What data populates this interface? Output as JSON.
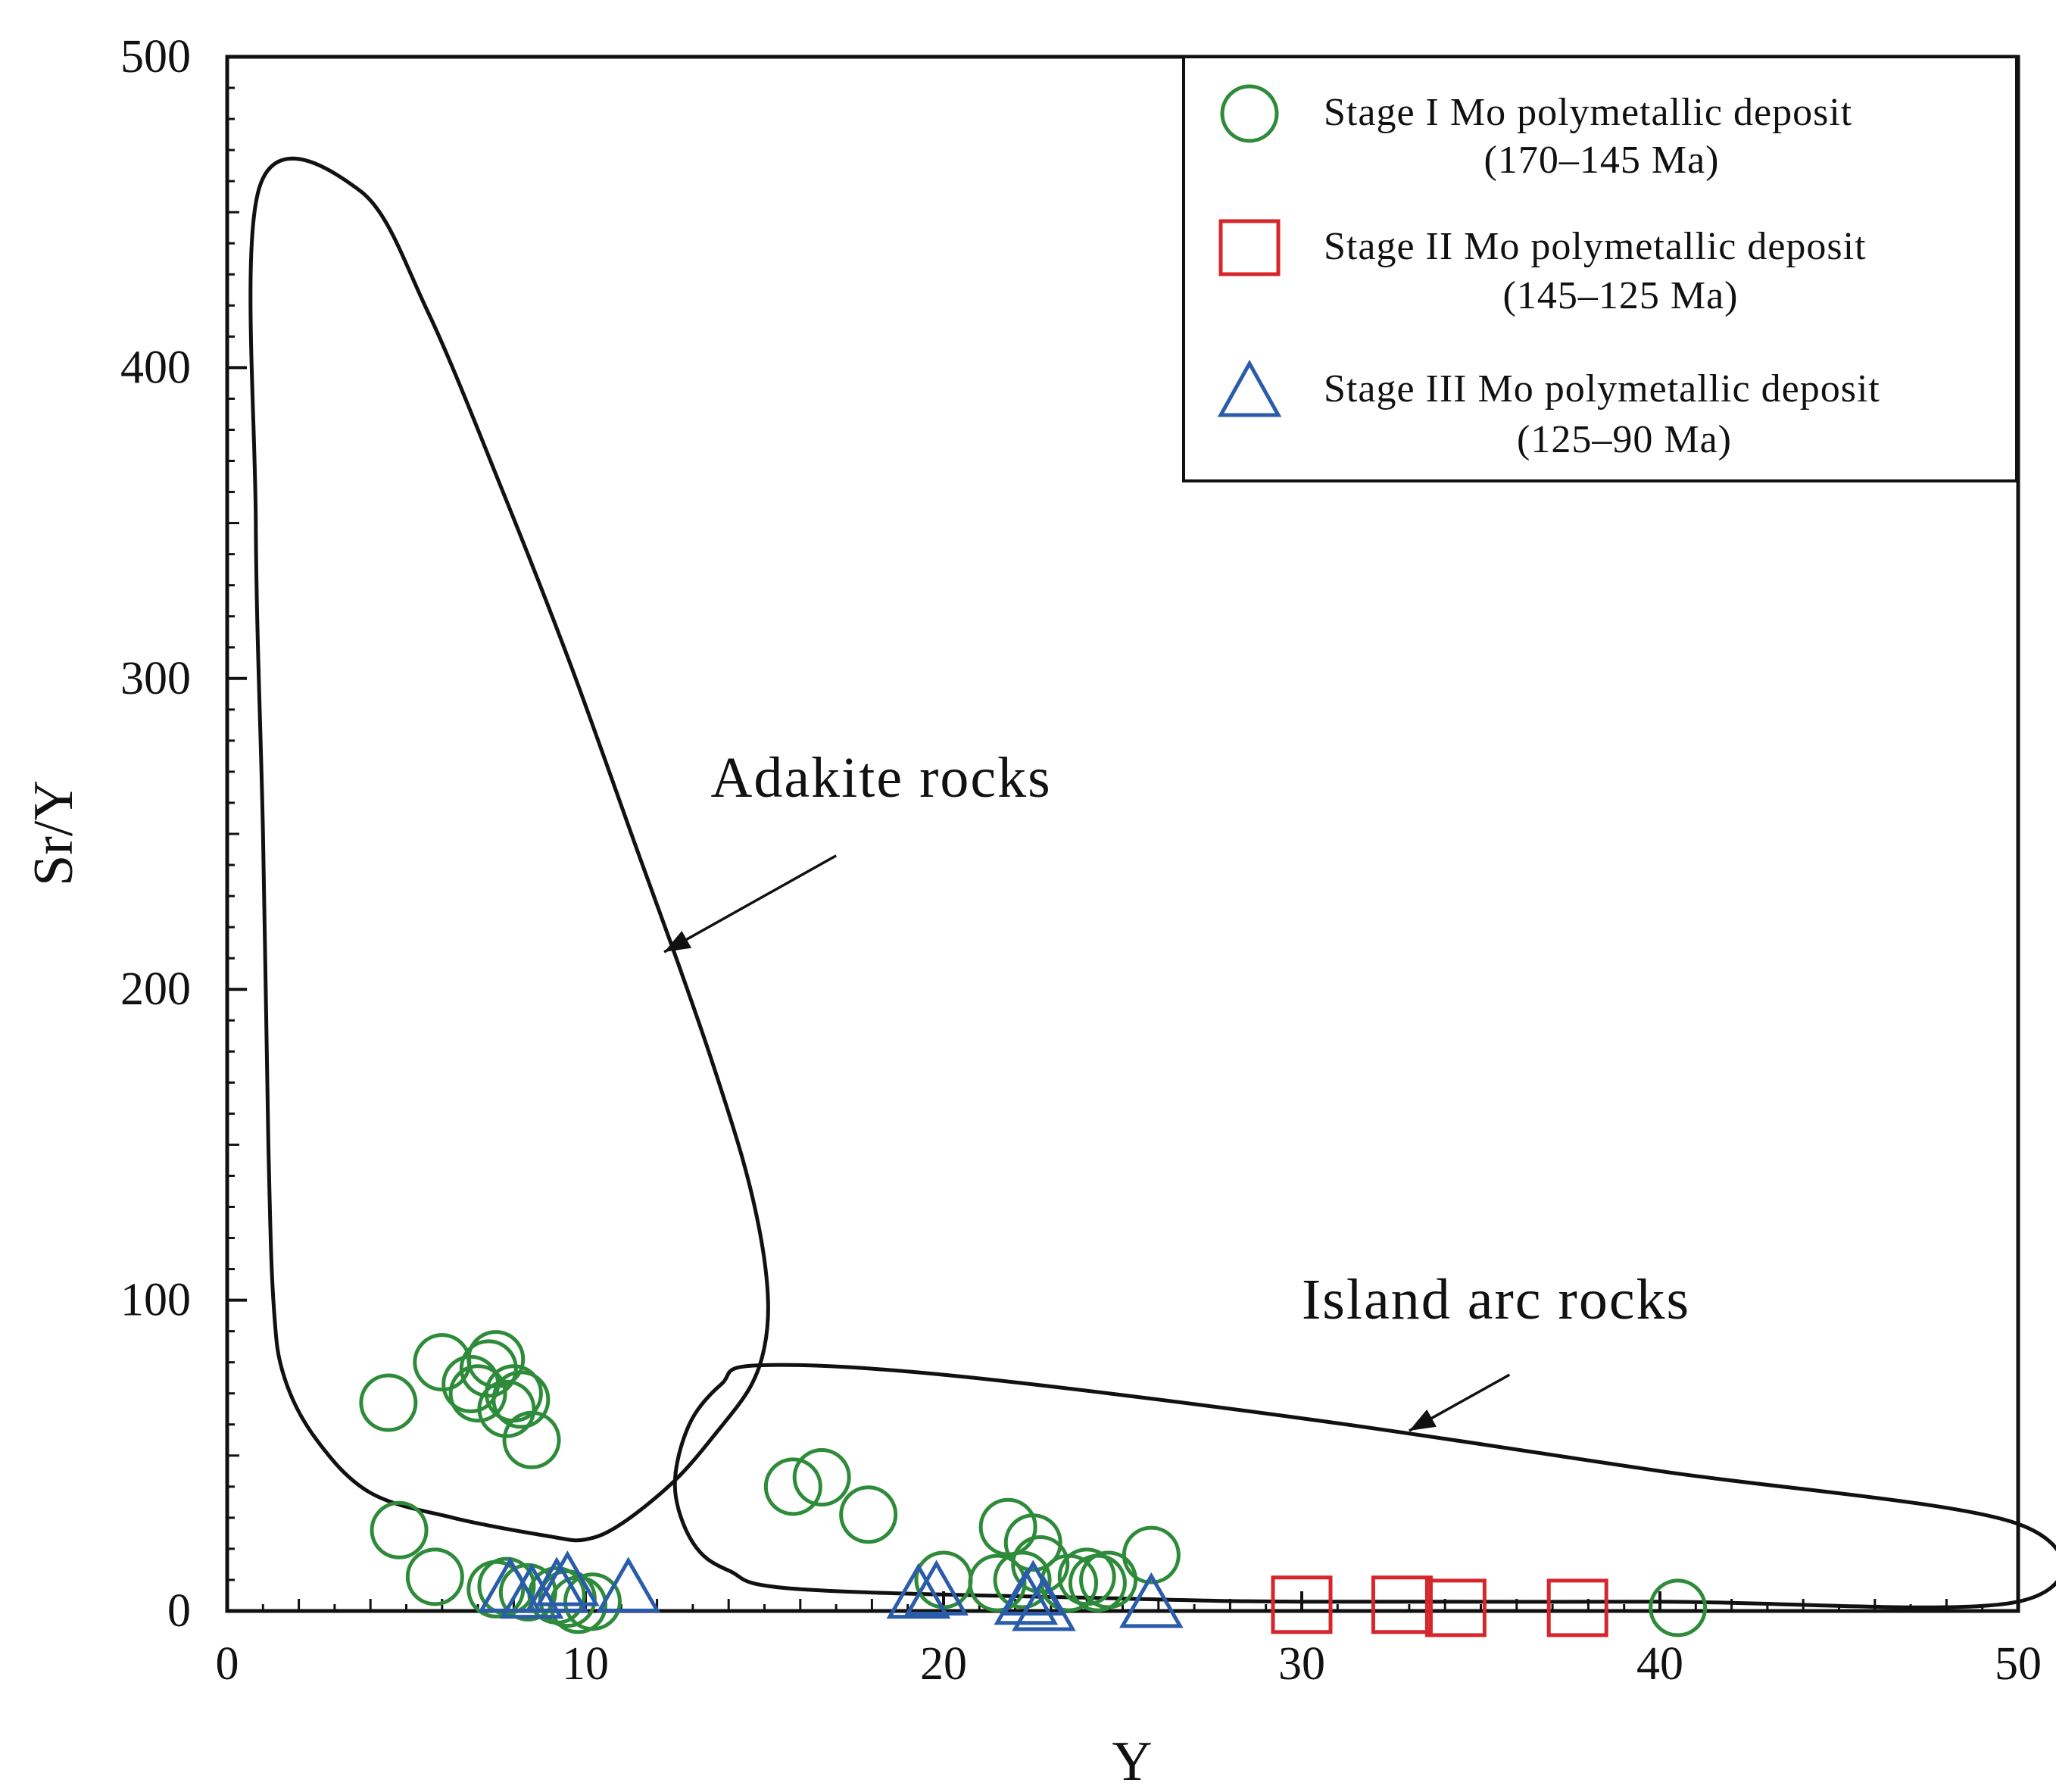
{
  "chart_data": {
    "type": "scatter",
    "title": "",
    "xlabel": "Y",
    "ylabel": "Sr/Y",
    "xlim": [
      0,
      50
    ],
    "ylim": [
      0,
      500
    ],
    "x_ticks": [
      "0",
      "10",
      "20",
      "30",
      "40",
      "50"
    ],
    "y_ticks": [
      "0",
      "100",
      "200",
      "300",
      "400",
      "500"
    ],
    "grid": false,
    "legend_position": "top-right",
    "series": [
      {
        "name": "Stage I Mo polymetallic deposit",
        "sub": "(170–145 Ma)",
        "marker": "circle",
        "color": "#2e8b3a",
        "points": [
          [
            4.5,
            67
          ],
          [
            6.0,
            80
          ],
          [
            6.8,
            73
          ],
          [
            7.0,
            70
          ],
          [
            7.3,
            78
          ],
          [
            7.5,
            81
          ],
          [
            7.8,
            65
          ],
          [
            8.0,
            70
          ],
          [
            8.2,
            68
          ],
          [
            8.5,
            55
          ],
          [
            4.8,
            26
          ],
          [
            5.8,
            11
          ],
          [
            7.5,
            7
          ],
          [
            7.8,
            8
          ],
          [
            8.4,
            6
          ],
          [
            9.2,
            5
          ],
          [
            9.5,
            4
          ],
          [
            9.8,
            2
          ],
          [
            10.2,
            3
          ],
          [
            15.8,
            40
          ],
          [
            16.6,
            43
          ],
          [
            17.9,
            31
          ],
          [
            20.0,
            10
          ],
          [
            21.5,
            9
          ],
          [
            21.8,
            27
          ],
          [
            22.2,
            10
          ],
          [
            22.5,
            22
          ],
          [
            22.7,
            15
          ],
          [
            23.5,
            9
          ],
          [
            24.0,
            11
          ],
          [
            24.3,
            9
          ],
          [
            24.6,
            10
          ],
          [
            25.8,
            18
          ],
          [
            40.5,
            1
          ]
        ]
      },
      {
        "name": "Stage II Mo polymetallic deposit",
        "sub": "(145–125 Ma)",
        "marker": "square",
        "color": "#d7262b",
        "points": [
          [
            30.0,
            2
          ],
          [
            32.8,
            2
          ],
          [
            34.3,
            1
          ],
          [
            37.7,
            1
          ]
        ]
      },
      {
        "name": "Stage III Mo polymetallic deposit",
        "sub": "(125–90 Ma)",
        "marker": "triangle",
        "color": "#2a5caa",
        "points": [
          [
            7.9,
            6
          ],
          [
            8.5,
            4
          ],
          [
            9.2,
            6
          ],
          [
            9.5,
            8
          ],
          [
            11.2,
            6
          ],
          [
            19.3,
            4
          ],
          [
            19.8,
            5
          ],
          [
            22.3,
            2
          ],
          [
            22.5,
            5
          ],
          [
            22.8,
            0
          ],
          [
            25.8,
            1
          ]
        ]
      }
    ],
    "regions": [
      {
        "label": "Adakite rocks",
        "label_anchor": [
          13.5,
          262
        ],
        "arrow_from": [
          17.0,
          243
        ],
        "arrow_to": [
          12.2,
          212
        ],
        "outline": [
          [
            3.7,
            457
          ],
          [
            5.6,
            418
          ],
          [
            7.7,
            360
          ],
          [
            9.6,
            304
          ],
          [
            11.5,
            243
          ],
          [
            12.6,
            208
          ],
          [
            13.5,
            178
          ],
          [
            14.4,
            145
          ],
          [
            14.9,
            120
          ],
          [
            15.1,
            100
          ],
          [
            15.0,
            85
          ],
          [
            14.6,
            72
          ],
          [
            13.7,
            58
          ],
          [
            12.5,
            42
          ],
          [
            11.0,
            28
          ],
          [
            10.0,
            23
          ],
          [
            9.0,
            24
          ],
          [
            6.3,
            30
          ],
          [
            4.0,
            38
          ],
          [
            2.5,
            55
          ],
          [
            1.6,
            75
          ],
          [
            1.3,
            98
          ],
          [
            1.15,
            150
          ],
          [
            1.0,
            250
          ],
          [
            0.8,
            350
          ],
          [
            0.9,
            458
          ]
        ]
      },
      {
        "label": "Island arc rocks",
        "label_anchor": [
          30.0,
          94
        ],
        "arrow_from": [
          35.8,
          76
        ],
        "arrow_to": [
          33.0,
          58
        ],
        "outline": [
          [
            14.8,
            79
          ],
          [
            20.0,
            76
          ],
          [
            30.0,
            62
          ],
          [
            40.0,
            45
          ],
          [
            50.0,
            28
          ],
          [
            50.0,
            3
          ],
          [
            40.0,
            3
          ],
          [
            30.0,
            3
          ],
          [
            25.0,
            4
          ],
          [
            16.0,
            7
          ],
          [
            14.0,
            13
          ],
          [
            13.0,
            22
          ],
          [
            12.5,
            40
          ],
          [
            12.9,
            60
          ],
          [
            13.8,
            73
          ]
        ]
      }
    ]
  }
}
